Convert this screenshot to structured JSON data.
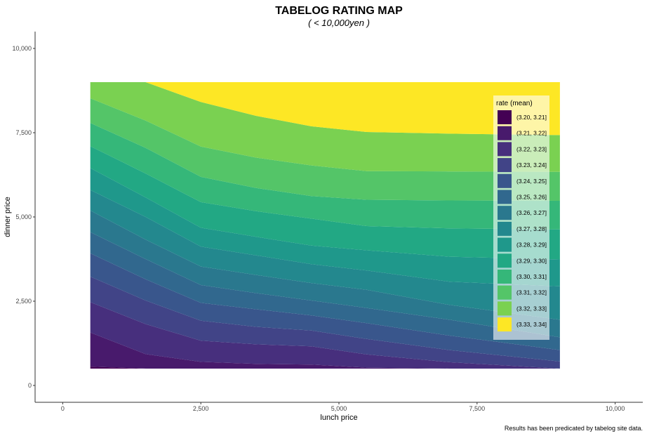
{
  "chart_data": {
    "type": "filled-contour",
    "title": "TABELOG RATING MAP",
    "subtitle": "( < 10,000yen )",
    "xlabel": "lunch price",
    "ylabel": "dinner price",
    "caption": "Results has been predicated by tabelog site data.",
    "xlim": [
      -500,
      10500
    ],
    "ylim": [
      -500,
      10500
    ],
    "x_ticks": [
      0,
      2500,
      5000,
      7500,
      10000
    ],
    "x_tick_labels": [
      "0",
      "2,500",
      "5,000",
      "7,500",
      "10,000"
    ],
    "y_ticks": [
      0,
      2500,
      5000,
      7500,
      10000
    ],
    "y_tick_labels": [
      "0",
      "2,500",
      "5,000",
      "7,500",
      "10,000"
    ],
    "data_range": {
      "x": [
        500,
        9000
      ],
      "y": [
        500,
        9000
      ]
    },
    "grid": false,
    "legend": {
      "title": "rate (mean)",
      "position": "top-right-inside",
      "levels": [
        {
          "label": "(3.20, 3.21]",
          "color": "#440154"
        },
        {
          "label": "(3.21, 3.22]",
          "color": "#481a6c"
        },
        {
          "label": "(3.22, 3.23]",
          "color": "#472f7d"
        },
        {
          "label": "(3.23, 3.24]",
          "color": "#414487"
        },
        {
          "label": "(3.24, 3.25]",
          "color": "#39568c"
        },
        {
          "label": "(3.25, 3.26]",
          "color": "#31688e"
        },
        {
          "label": "(3.26, 3.27]",
          "color": "#2a788e"
        },
        {
          "label": "(3.27, 3.28]",
          "color": "#23888e"
        },
        {
          "label": "(3.28, 3.29]",
          "color": "#1f988b"
        },
        {
          "label": "(3.29, 3.30]",
          "color": "#22a884"
        },
        {
          "label": "(3.30, 3.31]",
          "color": "#35b779"
        },
        {
          "label": "(3.31, 3.32]",
          "color": "#54c568"
        },
        {
          "label": "(3.32, 3.33]",
          "color": "#7ad151"
        },
        {
          "label": "(3.33, 3.34]",
          "color": "#fde725"
        }
      ]
    },
    "contour_boundaries": {
      "x": [
        500,
        1500,
        2500,
        3500,
        4500,
        5500,
        7000,
        9000
      ],
      "lines": [
        [
          560,
          500,
          500,
          500,
          500,
          500,
          500,
          500
        ],
        [
          1570,
          930,
          700,
          640,
          620,
          530,
          500,
          500
        ],
        [
          2470,
          1820,
          1330,
          1220,
          1160,
          920,
          690,
          500
        ],
        [
          3230,
          2520,
          1920,
          1740,
          1630,
          1380,
          1050,
          710
        ],
        [
          3920,
          3150,
          2450,
          2260,
          2080,
          1850,
          1480,
          1050
        ],
        [
          4550,
          3750,
          2980,
          2740,
          2520,
          2300,
          1950,
          1430
        ],
        [
          5190,
          4330,
          3530,
          3280,
          3040,
          2840,
          2390,
          1950
        ],
        [
          5800,
          5000,
          4120,
          3860,
          3600,
          3410,
          3080,
          2940
        ],
        [
          6450,
          5580,
          4680,
          4410,
          4150,
          4010,
          3820,
          3740
        ],
        [
          7100,
          6290,
          5440,
          5170,
          4950,
          4730,
          4660,
          4630
        ],
        [
          7790,
          7050,
          6190,
          5860,
          5620,
          5510,
          5490,
          5480
        ],
        [
          8520,
          7860,
          7090,
          6760,
          6530,
          6360,
          6350,
          6340
        ],
        [
          9000,
          9000,
          8410,
          8000,
          7690,
          7520,
          7470,
          7430
        ],
        [
          9000,
          9000,
          9000,
          9000,
          9000,
          8480,
          8340,
          8290
        ]
      ]
    }
  }
}
